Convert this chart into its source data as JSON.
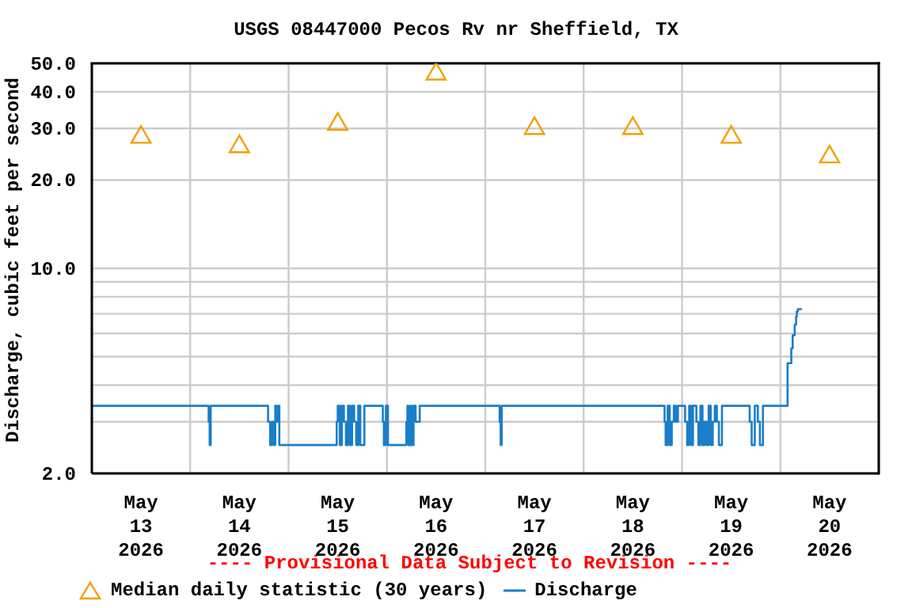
{
  "chart_data": {
    "type": "step",
    "title": "USGS 08447000 Pecos Rv nr Sheffield, TX",
    "ylabel": "Discharge, cubic feet per second",
    "annotations": [
      "---- Provisional Data Subject to Revision ----"
    ],
    "log": "y",
    "grid": true,
    "legend": "bottom",
    "xlim": [
      "2026-05-13T00:00",
      "2026-05-21T00:00"
    ],
    "xticks": [
      {
        "value": "2026-05-13T00:00",
        "label": null
      },
      {
        "value": "2026-05-13T12:00",
        "label": "May\n13\n2026"
      },
      {
        "value": "2026-05-14T00:00",
        "label": null
      },
      {
        "value": "2026-05-14T12:00",
        "label": "May\n14\n2026"
      },
      {
        "value": "2026-05-15T00:00",
        "label": null
      },
      {
        "value": "2026-05-15T12:00",
        "label": "May\n15\n2026"
      },
      {
        "value": "2026-05-16T00:00",
        "label": null
      },
      {
        "value": "2026-05-16T12:00",
        "label": "May\n16\n2026"
      },
      {
        "value": "2026-05-17T00:00",
        "label": null
      },
      {
        "value": "2026-05-17T12:00",
        "label": "May\n17\n2026"
      },
      {
        "value": "2026-05-18T00:00",
        "label": null
      },
      {
        "value": "2026-05-18T12:00",
        "label": "May\n18\n2026"
      },
      {
        "value": "2026-05-19T00:00",
        "label": null
      },
      {
        "value": "2026-05-19T12:00",
        "label": "May\n19\n2026"
      },
      {
        "value": "2026-05-20T00:00",
        "label": null
      },
      {
        "value": "2026-05-20T12:00",
        "label": "May\n20\n2026"
      },
      {
        "value": "2026-05-21T00:00",
        "label": null
      }
    ],
    "ylim": [
      2,
      50
    ],
    "yticks": [
      {
        "value": 2,
        "label": "2.0"
      },
      {
        "value": 3,
        "label": null
      },
      {
        "value": 4,
        "label": null
      },
      {
        "value": 5,
        "label": null
      },
      {
        "value": 6,
        "label": null
      },
      {
        "value": 7,
        "label": null
      },
      {
        "value": 8,
        "label": null
      },
      {
        "value": 9,
        "label": null
      },
      {
        "value": 10,
        "label": "10.0"
      },
      {
        "value": 20,
        "label": "20.0"
      },
      {
        "value": 30,
        "label": "30.0"
      },
      {
        "value": 40,
        "label": "40.0"
      },
      {
        "value": 50,
        "label": "50.0"
      }
    ],
    "series": [
      {
        "name": "Median daily statistic (30 years)",
        "type": "scatter",
        "marker": "triangle",
        "color": "#f0a000",
        "x": [
          "2026-05-13T12:00",
          "2026-05-14T12:00",
          "2026-05-15T12:00",
          "2026-05-16T12:00",
          "2026-05-17T12:00",
          "2026-05-18T12:00",
          "2026-05-19T12:00",
          "2026-05-20T12:00"
        ],
        "values": [
          28,
          26,
          31,
          46,
          30,
          30,
          28,
          24
        ]
      },
      {
        "name": "Discharge",
        "marker": "none",
        "color": "#1a7ec8",
        "x": [
          "2026-05-13T00:00",
          "2026-05-14T04:30",
          "2026-05-14T04:45",
          "2026-05-14T05:00",
          "2026-05-14T19:00",
          "2026-05-14T19:30",
          "2026-05-14T20:00",
          "2026-05-14T20:30",
          "2026-05-14T20:45",
          "2026-05-14T21:00",
          "2026-05-14T21:30",
          "2026-05-14T21:45",
          "2026-05-15T11:45",
          "2026-05-15T12:00",
          "2026-05-15T12:30",
          "2026-05-15T13:00",
          "2026-05-15T13:30",
          "2026-05-15T14:00",
          "2026-05-15T14:30",
          "2026-05-15T15:00",
          "2026-05-15T15:30",
          "2026-05-15T16:00",
          "2026-05-15T16:30",
          "2026-05-15T17:00",
          "2026-05-15T17:30",
          "2026-05-15T18:30",
          "2026-05-15T23:00",
          "2026-05-15T23:15",
          "2026-05-15T23:45",
          "2026-05-16T00:15",
          "2026-05-16T04:45",
          "2026-05-16T05:00",
          "2026-05-16T05:15",
          "2026-05-16T05:45",
          "2026-05-16T06:00",
          "2026-05-16T06:30",
          "2026-05-16T07:00",
          "2026-05-16T08:00",
          "2026-05-17T03:30",
          "2026-05-17T03:45",
          "2026-05-17T04:00",
          "2026-05-18T19:45",
          "2026-05-18T20:00",
          "2026-05-18T20:30",
          "2026-05-18T21:00",
          "2026-05-18T21:30",
          "2026-05-18T22:00",
          "2026-05-18T22:30",
          "2026-05-18T23:00",
          "2026-05-19T00:45",
          "2026-05-19T01:15",
          "2026-05-19T01:45",
          "2026-05-19T02:15",
          "2026-05-19T02:40",
          "2026-05-19T03:30",
          "2026-05-19T04:00",
          "2026-05-19T04:30",
          "2026-05-19T05:00",
          "2026-05-19T05:30",
          "2026-05-19T06:00",
          "2026-05-19T06:30",
          "2026-05-19T07:00",
          "2026-05-19T07:30",
          "2026-05-19T08:00",
          "2026-05-19T08:30",
          "2026-05-19T09:00",
          "2026-05-19T09:45",
          "2026-05-19T16:30",
          "2026-05-19T17:00",
          "2026-05-19T17:45",
          "2026-05-19T18:30",
          "2026-05-19T19:00",
          "2026-05-19T19:45",
          "2026-05-20T01:45",
          "2026-05-20T02:40",
          "2026-05-20T03:00",
          "2026-05-20T03:30",
          "2026-05-20T03:50",
          "2026-05-20T04:00",
          "2026-05-20T04:15",
          "2026-05-20T05:15"
        ],
        "values": [
          3.4,
          3.0,
          2.5,
          3.4,
          3.0,
          2.5,
          3.0,
          2.5,
          3.4,
          3.0,
          3.4,
          2.5,
          3.0,
          3.4,
          2.5,
          3.4,
          3.0,
          2.5,
          3.4,
          2.5,
          3.4,
          3.0,
          2.5,
          3.4,
          2.5,
          3.4,
          3.0,
          2.5,
          3.4,
          2.5,
          3.0,
          3.4,
          2.5,
          3.4,
          2.5,
          3.4,
          3.0,
          3.4,
          3.0,
          2.5,
          3.4,
          3.0,
          2.5,
          3.4,
          2.5,
          3.0,
          3.4,
          3.0,
          3.4,
          3.0,
          2.5,
          3.4,
          2.5,
          3.4,
          3.0,
          2.5,
          3.4,
          2.5,
          3.0,
          2.5,
          3.4,
          2.5,
          3.0,
          3.4,
          3.0,
          2.5,
          3.4,
          3.0,
          2.5,
          3.4,
          3.0,
          2.5,
          3.4,
          4.75,
          5.34,
          5.92,
          6.43,
          6.84,
          7.13,
          7.26,
          7.26
        ]
      }
    ]
  }
}
